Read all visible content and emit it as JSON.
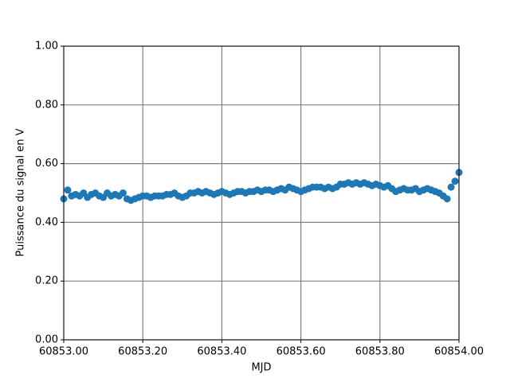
{
  "chart_data": {
    "type": "scatter",
    "x_label": "MJD",
    "y_label": "Puissance du signal en V",
    "color": "#1f77b4",
    "grid": true,
    "xlim": [
      60853.0,
      60854.0
    ],
    "ylim": [
      0.0,
      1.0
    ],
    "xticks": [
      {
        "value": 60853.0,
        "label": "60853.00"
      },
      {
        "value": 60853.2,
        "label": "60853.20"
      },
      {
        "value": 60853.4,
        "label": "60853.40"
      },
      {
        "value": 60853.6,
        "label": "60853.60"
      },
      {
        "value": 60853.8,
        "label": "60853.80"
      },
      {
        "value": 60854.0,
        "label": "60854.00"
      }
    ],
    "yticks": [
      {
        "value": 0.0,
        "label": "0.00"
      },
      {
        "value": 0.2,
        "label": "0.20"
      },
      {
        "value": 0.4,
        "label": "0.40"
      },
      {
        "value": 0.6,
        "label": "0.60"
      },
      {
        "value": 0.8,
        "label": "0.80"
      },
      {
        "value": 1.0,
        "label": "1.00"
      }
    ],
    "x": [
      60853.0,
      60853.01,
      60853.02,
      60853.03,
      60853.04,
      60853.05,
      60853.06,
      60853.07,
      60853.08,
      60853.09,
      60853.1,
      60853.11,
      60853.12,
      60853.13,
      60853.14,
      60853.15,
      60853.16,
      60853.17,
      60853.18,
      60853.19,
      60853.2,
      60853.21,
      60853.22,
      60853.23,
      60853.24,
      60853.25,
      60853.26,
      60853.27,
      60853.28,
      60853.29,
      60853.3,
      60853.31,
      60853.32,
      60853.33,
      60853.34,
      60853.35,
      60853.36,
      60853.37,
      60853.38,
      60853.39,
      60853.4,
      60853.41,
      60853.42,
      60853.43,
      60853.44,
      60853.45,
      60853.46,
      60853.47,
      60853.48,
      60853.49,
      60853.5,
      60853.51,
      60853.52,
      60853.53,
      60853.54,
      60853.55,
      60853.56,
      60853.57,
      60853.58,
      60853.59,
      60853.6,
      60853.61,
      60853.62,
      60853.63,
      60853.64,
      60853.65,
      60853.66,
      60853.67,
      60853.68,
      60853.69,
      60853.7,
      60853.71,
      60853.72,
      60853.73,
      60853.74,
      60853.75,
      60853.76,
      60853.77,
      60853.78,
      60853.79,
      60853.8,
      60853.81,
      60853.82,
      60853.83,
      60853.84,
      60853.85,
      60853.86,
      60853.87,
      60853.88,
      60853.89,
      60853.9,
      60853.91,
      60853.92,
      60853.93,
      60853.94,
      60853.95,
      60853.96,
      60853.97,
      60853.98,
      60853.99,
      60854.0
    ],
    "values": [
      0.48,
      0.51,
      0.49,
      0.495,
      0.49,
      0.5,
      0.485,
      0.495,
      0.5,
      0.49,
      0.485,
      0.5,
      0.49,
      0.495,
      0.49,
      0.5,
      0.48,
      0.475,
      0.48,
      0.485,
      0.49,
      0.49,
      0.485,
      0.49,
      0.49,
      0.49,
      0.495,
      0.495,
      0.5,
      0.49,
      0.485,
      0.49,
      0.5,
      0.5,
      0.505,
      0.5,
      0.505,
      0.5,
      0.495,
      0.5,
      0.505,
      0.5,
      0.495,
      0.5,
      0.505,
      0.505,
      0.5,
      0.505,
      0.505,
      0.51,
      0.505,
      0.51,
      0.51,
      0.505,
      0.51,
      0.515,
      0.51,
      0.52,
      0.515,
      0.51,
      0.505,
      0.51,
      0.515,
      0.52,
      0.52,
      0.52,
      0.515,
      0.52,
      0.515,
      0.52,
      0.53,
      0.53,
      0.535,
      0.53,
      0.535,
      0.53,
      0.535,
      0.53,
      0.525,
      0.53,
      0.525,
      0.52,
      0.525,
      0.515,
      0.505,
      0.51,
      0.515,
      0.51,
      0.51,
      0.515,
      0.505,
      0.51,
      0.515,
      0.51,
      0.505,
      0.5,
      0.49,
      0.48,
      0.52,
      0.54,
      0.57
    ]
  }
}
